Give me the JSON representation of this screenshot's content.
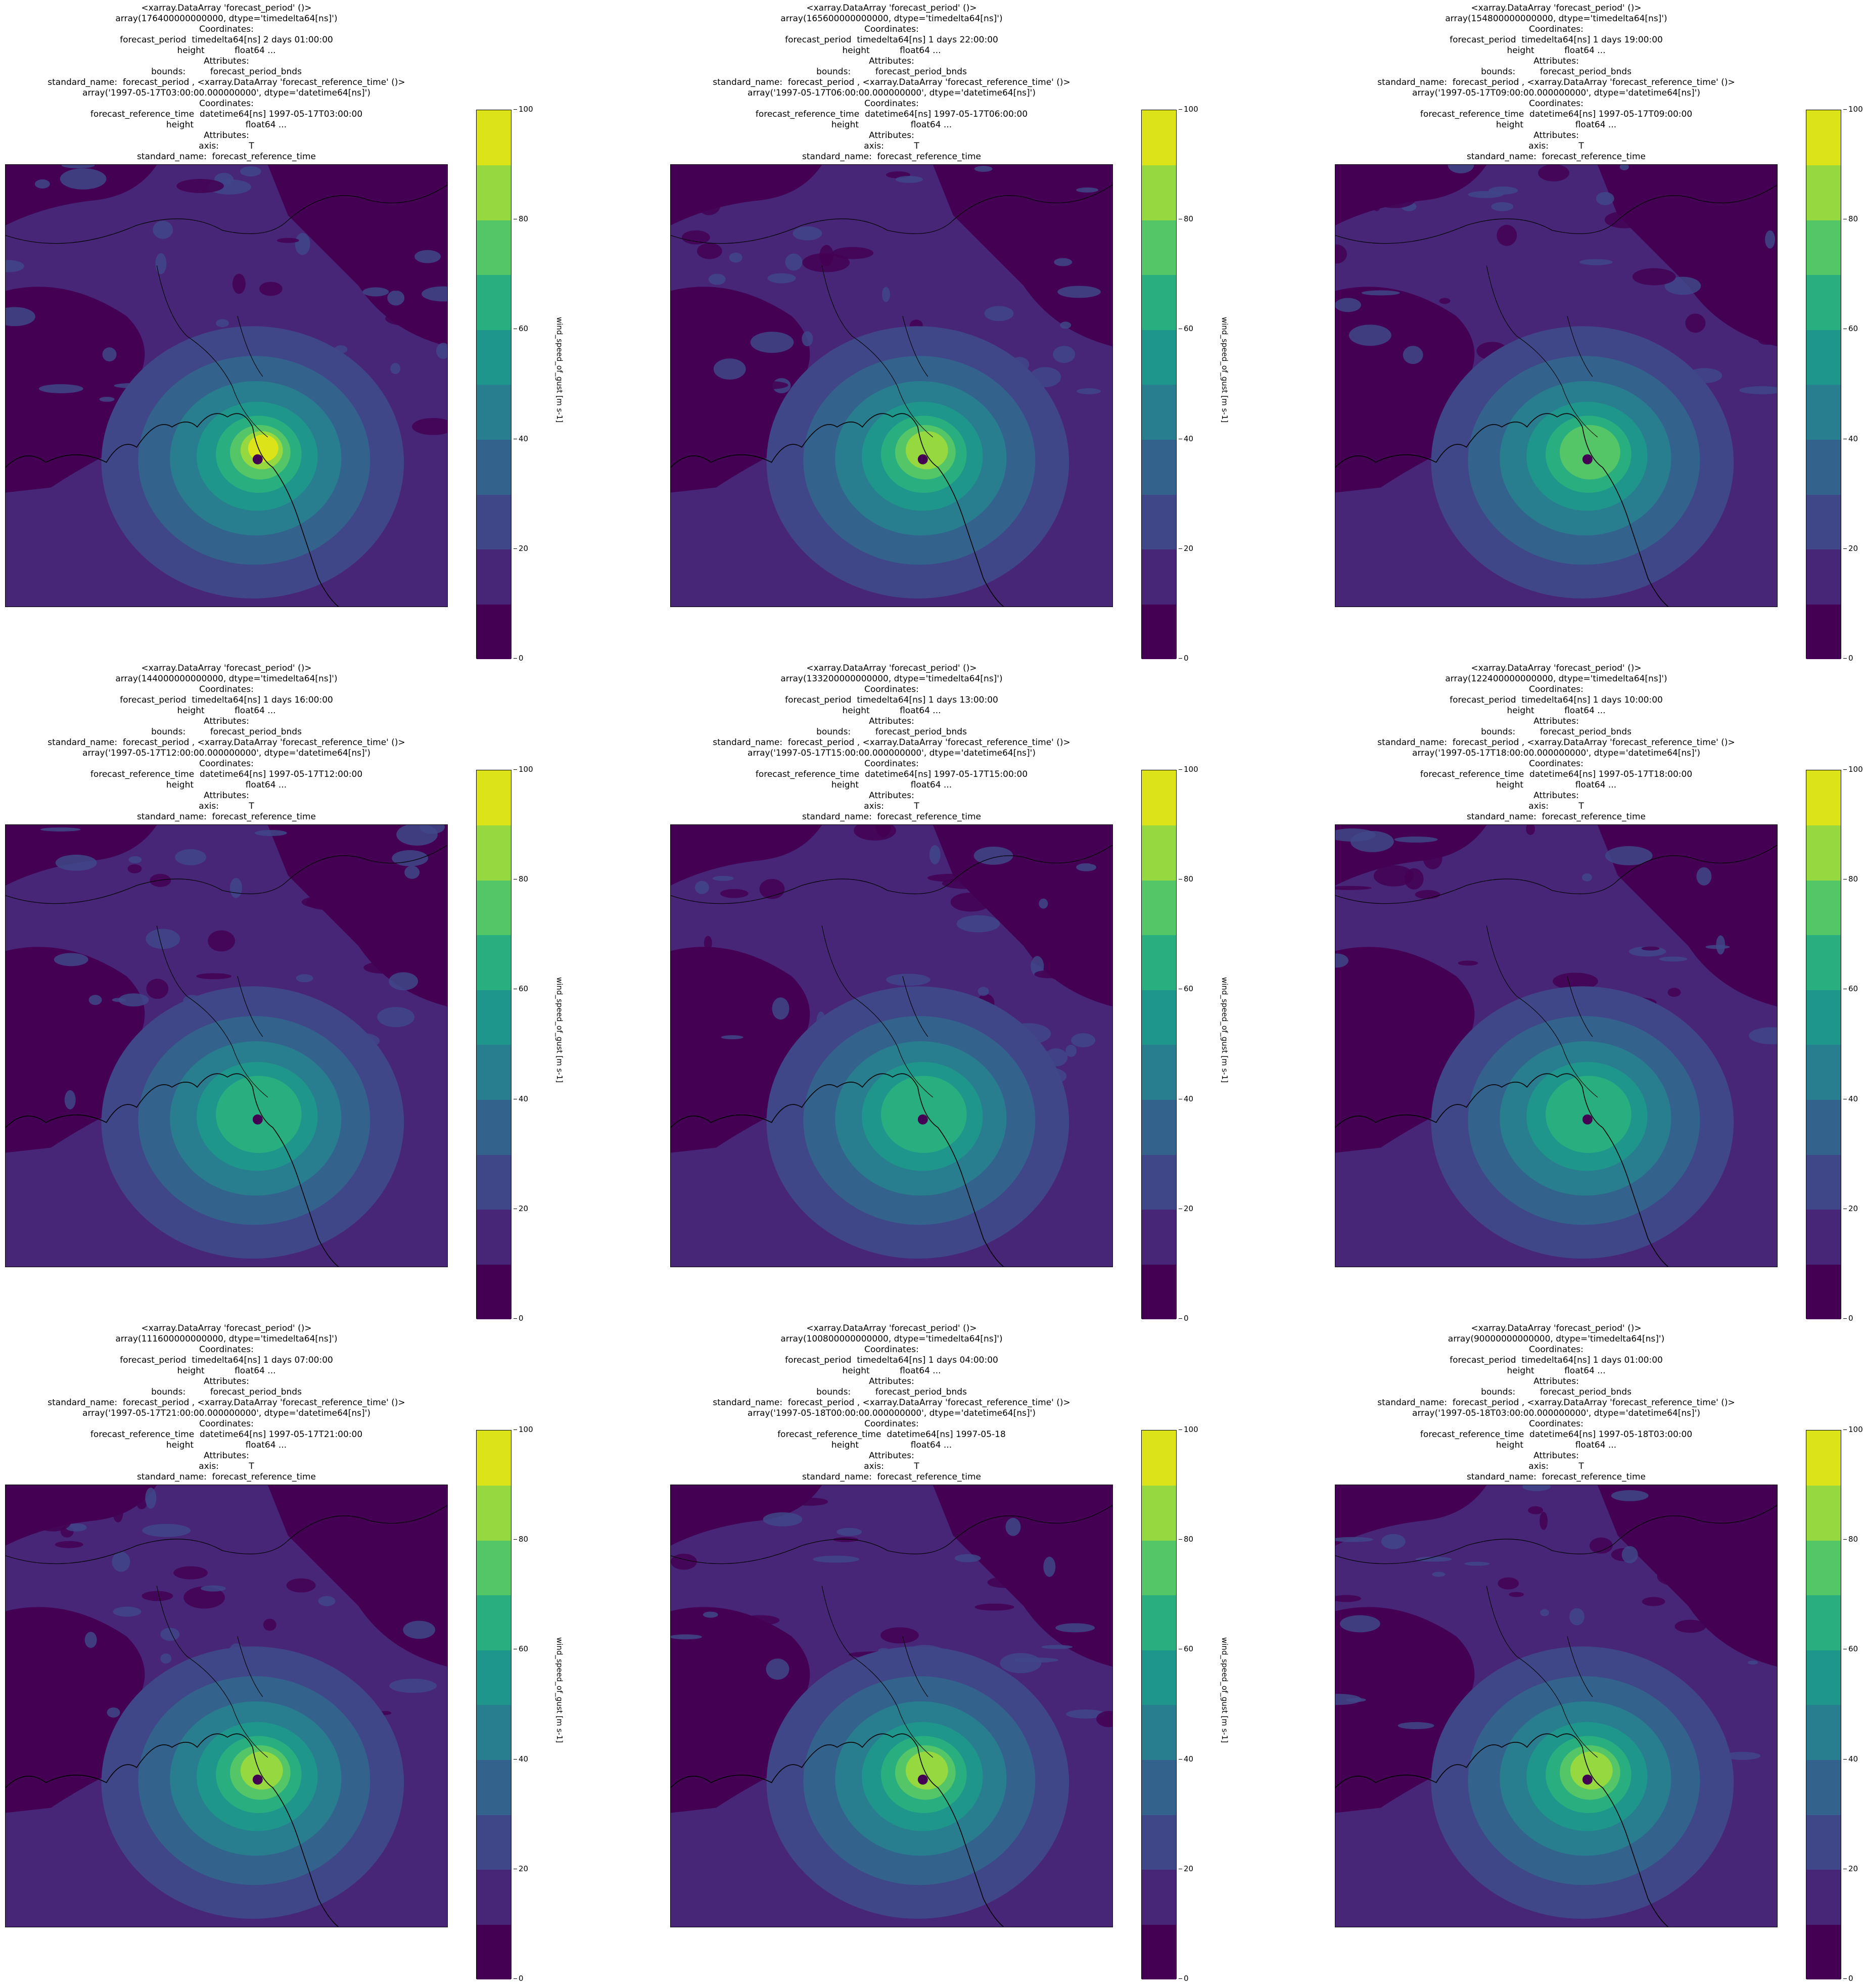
{
  "colorbar": {
    "label": "wind_speed_of_gust [m s-1]",
    "ticks": [
      "0",
      "20",
      "40",
      "60",
      "80",
      "100"
    ],
    "levels": [
      "#440154",
      "#482677",
      "#3f4788",
      "#33638d",
      "#287d8e",
      "#1f968b",
      "#29af7f",
      "#55c667",
      "#95d840",
      "#dce319"
    ]
  },
  "panels": [
    {
      "title_lines": [
        "<xarray.DataArray 'forecast_period' ()>",
        "array(176400000000000, dtype='timedelta64[ns]')",
        "Coordinates:",
        "forecast_period  timedelta64[ns] 2 days 01:00:00",
        "height           float64 ...",
        "Attributes:",
        "bounds:         forecast_period_bnds",
        "standard_name:  forecast_period , <xarray.DataArray 'forecast_reference_time' ()>",
        "array('1997-05-17T03:00:00.000000000', dtype='datetime64[ns]')",
        "Coordinates:",
        "forecast_reference_time  datetime64[ns] 1997-05-17T03:00:00",
        "height                   float64 ...",
        "Attributes:",
        "axis:           T",
        "standard_name:  forecast_reference_time"
      ],
      "peak_level": 9
    },
    {
      "title_lines": [
        "<xarray.DataArray 'forecast_period' ()>",
        "array(165600000000000, dtype='timedelta64[ns]')",
        "Coordinates:",
        "forecast_period  timedelta64[ns] 1 days 22:00:00",
        "height           float64 ...",
        "Attributes:",
        "bounds:         forecast_period_bnds",
        "standard_name:  forecast_period , <xarray.DataArray 'forecast_reference_time' ()>",
        "array('1997-05-17T06:00:00.000000000', dtype='datetime64[ns]')",
        "Coordinates:",
        "forecast_reference_time  datetime64[ns] 1997-05-17T06:00:00",
        "height                   float64 ...",
        "Attributes:",
        "axis:           T",
        "standard_name:  forecast_reference_time"
      ],
      "peak_level": 8
    },
    {
      "title_lines": [
        "<xarray.DataArray 'forecast_period' ()>",
        "array(154800000000000, dtype='timedelta64[ns]')",
        "Coordinates:",
        "forecast_period  timedelta64[ns] 1 days 19:00:00",
        "height           float64 ...",
        "Attributes:",
        "bounds:         forecast_period_bnds",
        "standard_name:  forecast_period , <xarray.DataArray 'forecast_reference_time' ()>",
        "array('1997-05-17T09:00:00.000000000', dtype='datetime64[ns]')",
        "Coordinates:",
        "forecast_reference_time  datetime64[ns] 1997-05-17T09:00:00",
        "height                   float64 ...",
        "Attributes:",
        "axis:           T",
        "standard_name:  forecast_reference_time"
      ],
      "peak_level": 7
    },
    {
      "title_lines": [
        "<xarray.DataArray 'forecast_period' ()>",
        "array(144000000000000, dtype='timedelta64[ns]')",
        "Coordinates:",
        "forecast_period  timedelta64[ns] 1 days 16:00:00",
        "height           float64 ...",
        "Attributes:",
        "bounds:         forecast_period_bnds",
        "standard_name:  forecast_period , <xarray.DataArray 'forecast_reference_time' ()>",
        "array('1997-05-17T12:00:00.000000000', dtype='datetime64[ns]')",
        "Coordinates:",
        "forecast_reference_time  datetime64[ns] 1997-05-17T12:00:00",
        "height                   float64 ...",
        "Attributes:",
        "axis:           T",
        "standard_name:  forecast_reference_time"
      ],
      "peak_level": 6
    },
    {
      "title_lines": [
        "<xarray.DataArray 'forecast_period' ()>",
        "array(133200000000000, dtype='timedelta64[ns]')",
        "Coordinates:",
        "forecast_period  timedelta64[ns] 1 days 13:00:00",
        "height           float64 ...",
        "Attributes:",
        "bounds:         forecast_period_bnds",
        "standard_name:  forecast_period , <xarray.DataArray 'forecast_reference_time' ()>",
        "array('1997-05-17T15:00:00.000000000', dtype='datetime64[ns]')",
        "Coordinates:",
        "forecast_reference_time  datetime64[ns] 1997-05-17T15:00:00",
        "height                   float64 ...",
        "Attributes:",
        "axis:           T",
        "standard_name:  forecast_reference_time"
      ],
      "peak_level": 6
    },
    {
      "title_lines": [
        "<xarray.DataArray 'forecast_period' ()>",
        "array(122400000000000, dtype='timedelta64[ns]')",
        "Coordinates:",
        "forecast_period  timedelta64[ns] 1 days 10:00:00",
        "height           float64 ...",
        "Attributes:",
        "bounds:         forecast_period_bnds",
        "standard_name:  forecast_period , <xarray.DataArray 'forecast_reference_time' ()>",
        "array('1997-05-17T18:00:00.000000000', dtype='datetime64[ns]')",
        "Coordinates:",
        "forecast_reference_time  datetime64[ns] 1997-05-17T18:00:00",
        "height                   float64 ...",
        "Attributes:",
        "axis:           T",
        "standard_name:  forecast_reference_time"
      ],
      "peak_level": 6
    },
    {
      "title_lines": [
        "<xarray.DataArray 'forecast_period' ()>",
        "array(111600000000000, dtype='timedelta64[ns]')",
        "Coordinates:",
        "forecast_period  timedelta64[ns] 1 days 07:00:00",
        "height           float64 ...",
        "Attributes:",
        "bounds:         forecast_period_bnds",
        "standard_name:  forecast_period , <xarray.DataArray 'forecast_reference_time' ()>",
        "array('1997-05-17T21:00:00.000000000', dtype='datetime64[ns]')",
        "Coordinates:",
        "forecast_reference_time  datetime64[ns] 1997-05-17T21:00:00",
        "height                   float64 ...",
        "Attributes:",
        "axis:           T",
        "standard_name:  forecast_reference_time"
      ],
      "peak_level": 8
    },
    {
      "title_lines": [
        "<xarray.DataArray 'forecast_period' ()>",
        "array(100800000000000, dtype='timedelta64[ns]')",
        "Coordinates:",
        "forecast_period  timedelta64[ns] 1 days 04:00:00",
        "height           float64 ...",
        "Attributes:",
        "bounds:         forecast_period_bnds",
        "standard_name:  forecast_period , <xarray.DataArray 'forecast_reference_time' ()>",
        "array('1997-05-18T00:00:00.000000000', dtype='datetime64[ns]')",
        "Coordinates:",
        "forecast_reference_time  datetime64[ns] 1997-05-18",
        "height                   float64 ...",
        "Attributes:",
        "axis:           T",
        "standard_name:  forecast_reference_time"
      ],
      "peak_level": 8
    },
    {
      "title_lines": [
        "<xarray.DataArray 'forecast_period' ()>",
        "array(90000000000000, dtype='timedelta64[ns]')",
        "Coordinates:",
        "forecast_period  timedelta64[ns] 1 days 01:00:00",
        "height           float64 ...",
        "Attributes:",
        "bounds:         forecast_period_bnds",
        "standard_name:  forecast_period , <xarray.DataArray 'forecast_reference_time' ()>",
        "array('1997-05-18T03:00:00.000000000', dtype='datetime64[ns]')",
        "Coordinates:",
        "forecast_reference_time  datetime64[ns] 1997-05-18T03:00:00",
        "height                   float64 ...",
        "Attributes:",
        "axis:           T",
        "standard_name:  forecast_reference_time"
      ],
      "peak_level": 8
    }
  ]
}
